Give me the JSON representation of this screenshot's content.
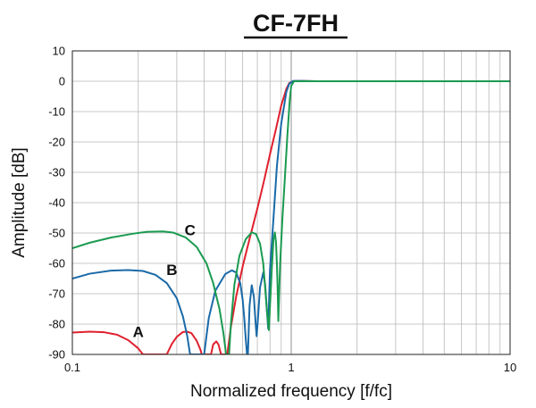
{
  "chart_data": {
    "type": "line",
    "title": "CF-7FH",
    "xlabel": "Normalized frequency [f/fc]",
    "ylabel": "Amplitude [dB]",
    "xscale": "log",
    "xlim": [
      0.1,
      10
    ],
    "ylim": [
      -90,
      10
    ],
    "grid": true,
    "x_tick_labels": [
      {
        "value": 0.1,
        "label": "0.1"
      },
      {
        "value": 1,
        "label": "1"
      },
      {
        "value": 10,
        "label": "10"
      }
    ],
    "y_tick_labels": [
      {
        "value": 10,
        "label": "10"
      },
      {
        "value": 0,
        "label": "0"
      },
      {
        "value": -10,
        "label": "-10"
      },
      {
        "value": -20,
        "label": "-20"
      },
      {
        "value": -30,
        "label": "-30"
      },
      {
        "value": -40,
        "label": "-40"
      },
      {
        "value": -50,
        "label": "-50"
      },
      {
        "value": -60,
        "label": "-60"
      },
      {
        "value": -70,
        "label": "-70"
      },
      {
        "value": -80,
        "label": "-80"
      },
      {
        "value": -90,
        "label": "-90"
      }
    ],
    "series": [
      {
        "name": "A",
        "color": "#e0202e",
        "label_at": [
          0.2,
          -82.5
        ],
        "points": [
          [
            0.1,
            -82.8
          ],
          [
            0.12,
            -82.5
          ],
          [
            0.14,
            -82.7
          ],
          [
            0.16,
            -83.5
          ],
          [
            0.18,
            -85.3
          ],
          [
            0.2,
            -88
          ],
          [
            0.21,
            -90
          ],
          [
            0.27,
            -90
          ],
          [
            0.285,
            -86.5
          ],
          [
            0.3,
            -84.2
          ],
          [
            0.32,
            -82.6
          ],
          [
            0.335,
            -82.5
          ],
          [
            0.35,
            -83
          ],
          [
            0.37,
            -85.5
          ],
          [
            0.385,
            -88.5
          ],
          [
            0.39,
            -90
          ],
          [
            0.43,
            -90
          ],
          [
            0.44,
            -86.7
          ],
          [
            0.455,
            -85.7
          ],
          [
            0.465,
            -86.7
          ],
          [
            0.478,
            -90
          ],
          [
            0.51,
            -90
          ],
          [
            0.53,
            -81
          ],
          [
            0.56,
            -71
          ],
          [
            0.6,
            -61
          ],
          [
            0.65,
            -51
          ],
          [
            0.7,
            -42
          ],
          [
            0.75,
            -33
          ],
          [
            0.8,
            -24
          ],
          [
            0.85,
            -16
          ],
          [
            0.9,
            -8
          ],
          [
            0.95,
            -2.5
          ],
          [
            0.98,
            -0.6
          ],
          [
            1.02,
            0
          ],
          [
            1.1,
            0.1
          ],
          [
            1.3,
            0
          ],
          [
            2,
            0
          ],
          [
            4,
            0
          ],
          [
            6,
            0
          ],
          [
            10,
            0
          ]
        ]
      },
      {
        "name": "B",
        "color": "#1a6aa8",
        "label_at": [
          0.285,
          -62
        ],
        "points": [
          [
            0.1,
            -65
          ],
          [
            0.12,
            -63.4
          ],
          [
            0.15,
            -62.4
          ],
          [
            0.18,
            -62.2
          ],
          [
            0.21,
            -62.5
          ],
          [
            0.24,
            -63.8
          ],
          [
            0.27,
            -66.5
          ],
          [
            0.3,
            -71.5
          ],
          [
            0.32,
            -77.5
          ],
          [
            0.335,
            -84
          ],
          [
            0.345,
            -90
          ],
          [
            0.4,
            -90
          ],
          [
            0.42,
            -78
          ],
          [
            0.45,
            -69
          ],
          [
            0.5,
            -63.5
          ],
          [
            0.535,
            -62.3
          ],
          [
            0.56,
            -63
          ],
          [
            0.585,
            -66.5
          ],
          [
            0.6,
            -72
          ],
          [
            0.61,
            -78
          ],
          [
            0.62,
            -85
          ],
          [
            0.628,
            -90
          ],
          [
            0.634,
            -90
          ],
          [
            0.645,
            -74
          ],
          [
            0.66,
            -67.2
          ],
          [
            0.675,
            -71
          ],
          [
            0.688,
            -80
          ],
          [
            0.695,
            -84
          ],
          [
            0.705,
            -78
          ],
          [
            0.72,
            -68
          ],
          [
            0.745,
            -63
          ],
          [
            0.76,
            -67
          ],
          [
            0.775,
            -76
          ],
          [
            0.785,
            -81.5
          ],
          [
            0.8,
            -62
          ],
          [
            0.83,
            -45
          ],
          [
            0.86,
            -28
          ],
          [
            0.9,
            -14
          ],
          [
            0.95,
            -3.5
          ],
          [
            0.98,
            -0.8
          ],
          [
            1.02,
            0.1
          ],
          [
            1.1,
            0.1
          ],
          [
            1.3,
            0
          ],
          [
            2,
            0
          ],
          [
            5,
            0
          ],
          [
            10,
            0
          ]
        ]
      },
      {
        "name": "C",
        "color": "#1a9a50",
        "label_at": [
          0.345,
          -49
        ],
        "points": [
          [
            0.1,
            -55
          ],
          [
            0.12,
            -53.2
          ],
          [
            0.15,
            -51.5
          ],
          [
            0.19,
            -50.2
          ],
          [
            0.22,
            -49.6
          ],
          [
            0.26,
            -49.5
          ],
          [
            0.29,
            -49.9
          ],
          [
            0.33,
            -51.5
          ],
          [
            0.37,
            -54.6
          ],
          [
            0.41,
            -60
          ],
          [
            0.44,
            -66.5
          ],
          [
            0.47,
            -75
          ],
          [
            0.49,
            -83
          ],
          [
            0.5,
            -88
          ],
          [
            0.503,
            -90
          ],
          [
            0.52,
            -90
          ],
          [
            0.53,
            -80
          ],
          [
            0.55,
            -67
          ],
          [
            0.58,
            -57.5
          ],
          [
            0.62,
            -52
          ],
          [
            0.66,
            -49.8
          ],
          [
            0.69,
            -50.3
          ],
          [
            0.72,
            -53.5
          ],
          [
            0.745,
            -60
          ],
          [
            0.76,
            -68
          ],
          [
            0.775,
            -76
          ],
          [
            0.79,
            -82
          ],
          [
            0.8,
            -74
          ],
          [
            0.815,
            -62
          ],
          [
            0.83,
            -52
          ],
          [
            0.842,
            -49.8
          ],
          [
            0.852,
            -53
          ],
          [
            0.86,
            -60
          ],
          [
            0.868,
            -70
          ],
          [
            0.873,
            -79
          ],
          [
            0.878,
            -73
          ],
          [
            0.89,
            -60
          ],
          [
            0.91,
            -46
          ],
          [
            0.935,
            -32
          ],
          [
            0.96,
            -18
          ],
          [
            0.985,
            -6
          ],
          [
            1.0,
            -1.5
          ],
          [
            1.03,
            0
          ],
          [
            1.1,
            0
          ],
          [
            1.5,
            0
          ],
          [
            3,
            0
          ],
          [
            10,
            0
          ]
        ]
      }
    ]
  }
}
